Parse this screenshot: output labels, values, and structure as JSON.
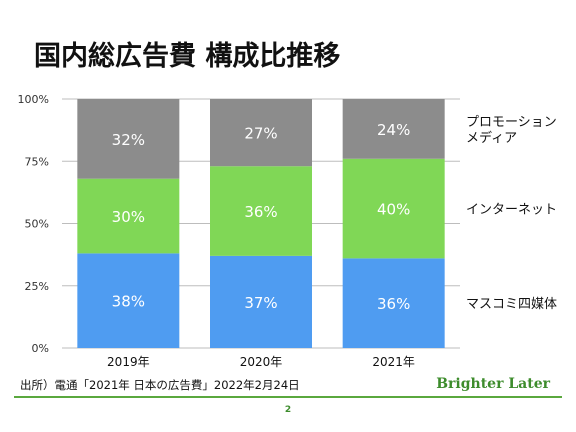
{
  "title": "国内総広告費 構成比推移",
  "source": "出所）電通「2021年 日本の広告費」2022年2月24日",
  "brand": "Brighter Later",
  "page_number": "2",
  "colors": {
    "mass_media": "#4f9cf1",
    "internet": "#80d756",
    "promotion": "#8c8c8c",
    "brand": "#3d8c2c"
  },
  "chart_data": {
    "type": "bar",
    "stacked": true,
    "categories": [
      "2019年",
      "2020年",
      "2021年"
    ],
    "series": [
      {
        "name": "マスコミ四媒体",
        "values": [
          38,
          37,
          36
        ],
        "labels": [
          "38%",
          "37%",
          "36%"
        ],
        "color": "#4f9cf1"
      },
      {
        "name": "インターネット",
        "values": [
          30,
          36,
          40
        ],
        "labels": [
          "30%",
          "36%",
          "40%"
        ],
        "color": "#80d756"
      },
      {
        "name": "プロモーションメディア",
        "name_lines": [
          "プロモーション",
          "メディア"
        ],
        "values": [
          32,
          27,
          24
        ],
        "labels": [
          "32%",
          "27%",
          "24%"
        ],
        "color": "#8c8c8c"
      }
    ],
    "yticks": [
      "0%",
      "25%",
      "50%",
      "75%",
      "100%"
    ],
    "ylim": [
      0,
      100
    ],
    "grid": true,
    "legend_position": "right"
  }
}
